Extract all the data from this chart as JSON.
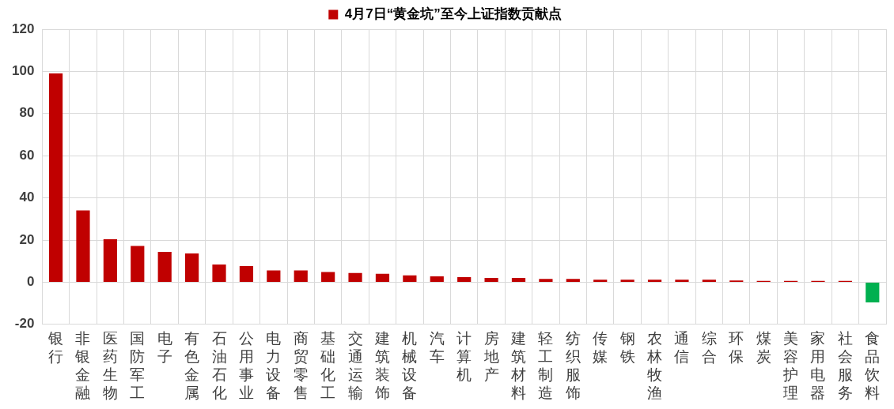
{
  "chart_data": {
    "type": "bar",
    "categories": [
      "银行",
      "非银金融",
      "医药生物",
      "国防军工",
      "电子",
      "有色金属",
      "石油石化",
      "公用事业",
      "电力设备",
      "商贸零售",
      "基础化工",
      "交通运输",
      "建筑装饰",
      "机械设备",
      "汽车",
      "计算机",
      "房地产",
      "建筑材料",
      "轻工制造",
      "纺织服饰",
      "传媒",
      "钢铁",
      "农林牧渔",
      "通信",
      "综合",
      "环保",
      "煤炭",
      "美容护理",
      "家用电器",
      "社会服务",
      "食品饮料"
    ],
    "series": [
      {
        "name": "4月7日“黄金坑”至今上证指数贡献点",
        "color": "#c00000",
        "colors": [
          "#c00000",
          "#c00000",
          "#c00000",
          "#c00000",
          "#c00000",
          "#c00000",
          "#c00000",
          "#c00000",
          "#c00000",
          "#c00000",
          "#c00000",
          "#c00000",
          "#c00000",
          "#c00000",
          "#c00000",
          "#c00000",
          "#c00000",
          "#c00000",
          "#c00000",
          "#c00000",
          "#c00000",
          "#c00000",
          "#c00000",
          "#c00000",
          "#c00000",
          "#c00000",
          "#c00000",
          "#c00000",
          "#c00000",
          "#c00000",
          "#00b050"
        ],
        "values": [
          99,
          34,
          20.4,
          17.2,
          14.4,
          13.6,
          8.4,
          7.6,
          5.6,
          5.6,
          4.8,
          4.4,
          4,
          3.2,
          2.8,
          2.4,
          2,
          2,
          1.6,
          1.6,
          1.2,
          1.2,
          1.2,
          1.2,
          1.2,
          0.8,
          0.6,
          0.6,
          0.6,
          0.6,
          -9.6
        ]
      }
    ],
    "ylim": [
      -20,
      120
    ],
    "yticks": [
      -20,
      0,
      20,
      40,
      60,
      80,
      100,
      120
    ],
    "grid": true,
    "legend": "top"
  }
}
